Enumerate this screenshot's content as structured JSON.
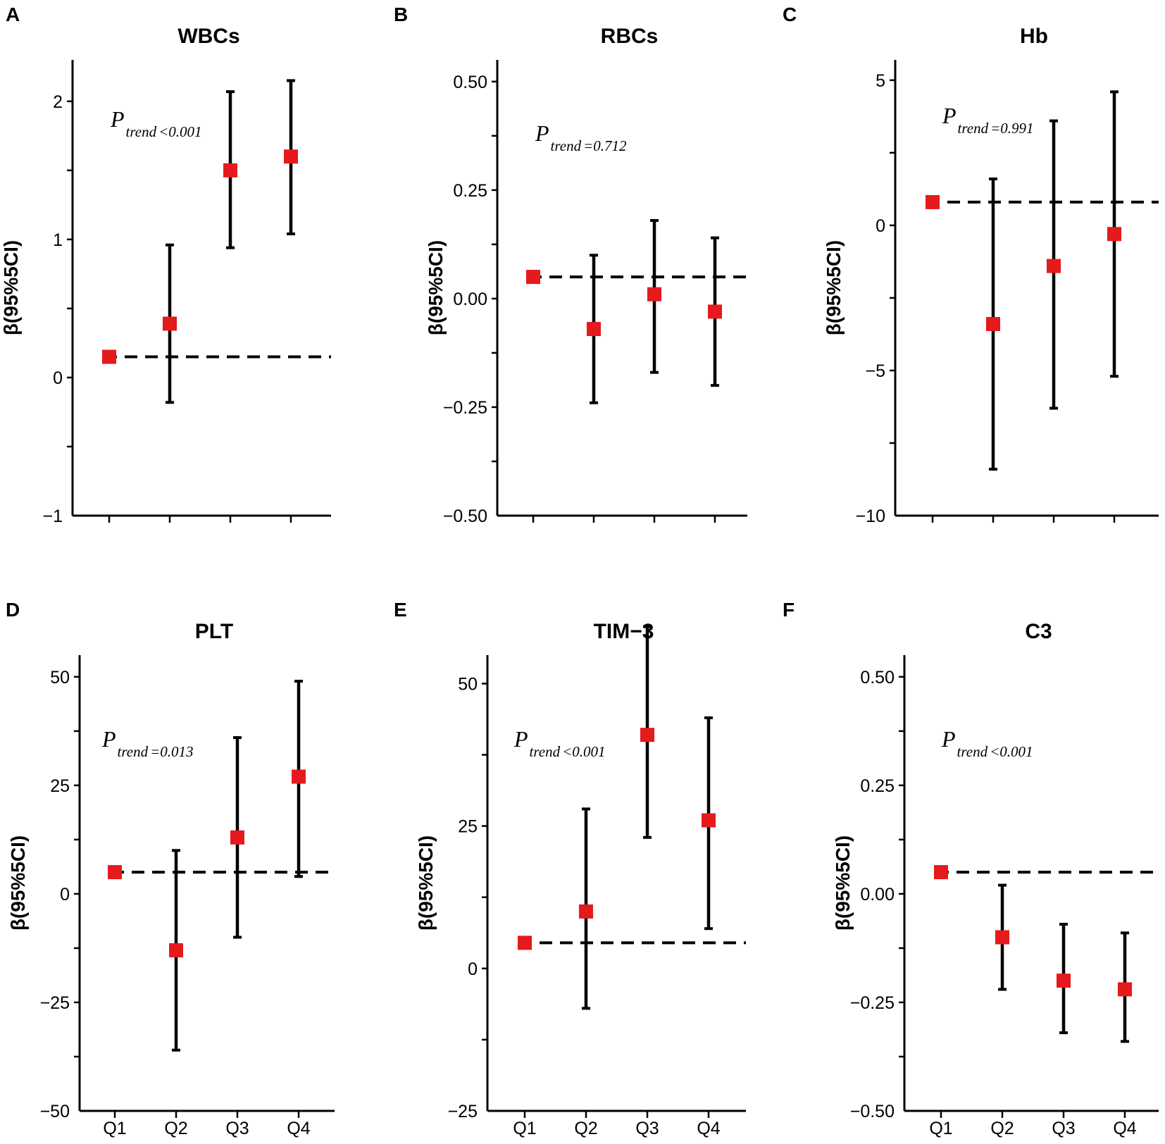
{
  "chart_data": [
    {
      "panel": "A",
      "type": "scatter",
      "title": "WBCs",
      "ylabel": "β(95%5CI)",
      "xlabel": "",
      "ylim": [
        -1,
        2.3
      ],
      "yticks": [
        -1,
        0,
        1,
        2
      ],
      "ytick_labels": [
        "−1",
        "0",
        "1",
        "2"
      ],
      "categories": [
        "Q1",
        "Q2",
        "Q3",
        "Q4"
      ],
      "show_category_labels": false,
      "reference_line": 0.15,
      "values": [
        0.15,
        0.39,
        1.5,
        1.6
      ],
      "ci_lower": [
        0.15,
        -0.18,
        0.94,
        1.04
      ],
      "ci_upper": [
        0.15,
        0.96,
        2.07,
        2.15
      ],
      "p_trend": "<0.001"
    },
    {
      "panel": "B",
      "type": "scatter",
      "title": "RBCs",
      "ylabel": "β(95%5CI)",
      "xlabel": "",
      "ylim": [
        -0.5,
        0.55
      ],
      "yticks": [
        -0.5,
        -0.25,
        0,
        0.25,
        0.5
      ],
      "ytick_labels": [
        "−0.50",
        "−0.25",
        "0.00",
        "0.25",
        "0.50"
      ],
      "categories": [
        "Q1",
        "Q2",
        "Q3",
        "Q4"
      ],
      "show_category_labels": false,
      "reference_line": 0.05,
      "values": [
        0.05,
        -0.07,
        0.01,
        -0.03
      ],
      "ci_lower": [
        0.05,
        -0.24,
        -0.17,
        -0.2
      ],
      "ci_upper": [
        0.05,
        0.1,
        0.18,
        0.14
      ],
      "p_trend": "=0.712"
    },
    {
      "panel": "C",
      "type": "scatter",
      "title": "Hb",
      "ylabel": "β(95%5CI)",
      "xlabel": "",
      "ylim": [
        -10,
        5.7
      ],
      "yticks": [
        -10,
        -5,
        0,
        5
      ],
      "ytick_labels": [
        "−10",
        "−5",
        "0",
        "5"
      ],
      "categories": [
        "Q1",
        "Q2",
        "Q3",
        "Q4"
      ],
      "show_category_labels": false,
      "reference_line": 0.8,
      "values": [
        0.8,
        -3.4,
        -1.4,
        -0.3
      ],
      "ci_lower": [
        0.8,
        -8.4,
        -6.3,
        -5.2
      ],
      "ci_upper": [
        0.8,
        1.6,
        3.6,
        4.6
      ],
      "p_trend": "=0.991"
    },
    {
      "panel": "D",
      "type": "scatter",
      "title": "PLT",
      "ylabel": "β(95%5CI)",
      "xlabel": "",
      "ylim": [
        -50,
        55
      ],
      "yticks": [
        -50,
        -25,
        0,
        25,
        50
      ],
      "ytick_labels": [
        "−50",
        "−25",
        "0",
        "25",
        "50"
      ],
      "categories": [
        "Q1",
        "Q2",
        "Q3",
        "Q4"
      ],
      "show_category_labels": true,
      "reference_line": 5,
      "values": [
        5,
        -13,
        13,
        27
      ],
      "ci_lower": [
        5,
        -36,
        -10,
        4
      ],
      "ci_upper": [
        5,
        10,
        36,
        49
      ],
      "p_trend": "=0.013"
    },
    {
      "panel": "E",
      "type": "scatter",
      "title": "TIM−3",
      "ylabel": "β(95%5CI)",
      "xlabel": "",
      "ylim": [
        -25,
        55
      ],
      "yticks": [
        -25,
        0,
        25,
        50
      ],
      "ytick_labels": [
        "−25",
        "0",
        "25",
        "50"
      ],
      "categories": [
        "Q1",
        "Q2",
        "Q3",
        "Q4"
      ],
      "show_category_labels": true,
      "reference_line": 4.5,
      "values": [
        4.5,
        10,
        41,
        26
      ],
      "ci_lower": [
        4.5,
        -7,
        23,
        7
      ],
      "ci_upper": [
        4.5,
        28,
        60,
        44
      ],
      "p_trend": "<0.001"
    },
    {
      "panel": "F",
      "type": "scatter",
      "title": "C3",
      "ylabel": "β(95%5CI)",
      "xlabel": "",
      "ylim": [
        -0.5,
        0.55
      ],
      "yticks": [
        -0.5,
        -0.25,
        0,
        0.25,
        0.5
      ],
      "ytick_labels": [
        "−0.50",
        "−0.25",
        "0.00",
        "0.25",
        "0.50"
      ],
      "categories": [
        "Q1",
        "Q2",
        "Q3",
        "Q4"
      ],
      "show_category_labels": true,
      "reference_line": 0.05,
      "values": [
        0.05,
        -0.1,
        -0.2,
        -0.22
      ],
      "ci_lower": [
        0.05,
        -0.22,
        -0.32,
        -0.34
      ],
      "ci_upper": [
        0.05,
        0.02,
        -0.07,
        -0.09
      ],
      "p_trend": "<0.001"
    }
  ],
  "p_label": {
    "main": "P",
    "sub": "trend"
  },
  "colors": {
    "marker": "#e41a1c",
    "line": "#000000",
    "background": "#ffffff"
  }
}
